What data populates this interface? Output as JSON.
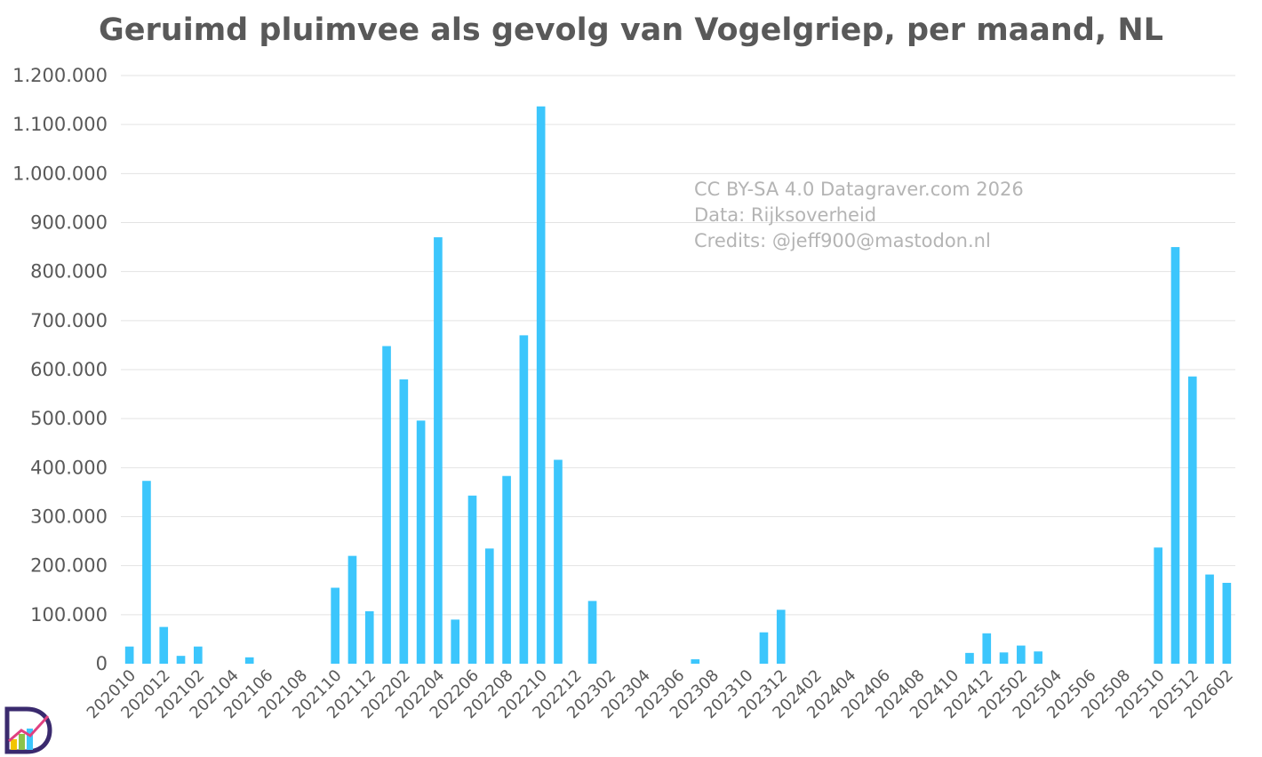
{
  "chart_data": {
    "type": "bar",
    "title": "Geruimd pluimvee als gevolg van Vogelgriep, per maand, NL",
    "xlabel": "",
    "ylabel": "",
    "ylim": [
      0,
      1200000
    ],
    "yticks": [
      "0",
      "100.000",
      "200.000",
      "300.000",
      "400.000",
      "500.000",
      "600.000",
      "700.000",
      "800.000",
      "900.000",
      "1.000.000",
      "1.100.000",
      "1.200.000"
    ],
    "grid": true,
    "categories": [
      "202010",
      "202011",
      "202012",
      "202101",
      "202102",
      "202103",
      "202104",
      "202105",
      "202106",
      "202107",
      "202108",
      "202109",
      "202110",
      "202111",
      "202112",
      "202201",
      "202202",
      "202203",
      "202204",
      "202205",
      "202206",
      "202207",
      "202208",
      "202209",
      "202210",
      "202211",
      "202212",
      "202301",
      "202302",
      "202303",
      "202304",
      "202305",
      "202306",
      "202307",
      "202308",
      "202309",
      "202310",
      "202311",
      "202312",
      "202401",
      "202402",
      "202403",
      "202404",
      "202405",
      "202406",
      "202407",
      "202408",
      "202409",
      "202410",
      "202411",
      "202412",
      "202501",
      "202502",
      "202503",
      "202504",
      "202505",
      "202506",
      "202507",
      "202508",
      "202509",
      "202510",
      "202511",
      "202512",
      "202601",
      "202602"
    ],
    "values": [
      35000,
      373000,
      75000,
      16000,
      35000,
      0,
      0,
      13000,
      0,
      0,
      0,
      0,
      155000,
      220000,
      107000,
      648000,
      580000,
      496000,
      870000,
      90000,
      343000,
      235000,
      383000,
      670000,
      1137000,
      416000,
      0,
      128000,
      0,
      0,
      0,
      0,
      0,
      9000,
      0,
      0,
      0,
      64000,
      110000,
      0,
      0,
      0,
      0,
      0,
      0,
      0,
      0,
      0,
      0,
      22000,
      62000,
      23000,
      37000,
      25000,
      0,
      0,
      0,
      0,
      0,
      0,
      237000,
      850000,
      586000,
      182000,
      165000
    ],
    "xtick_labels": [
      "202010",
      "202012",
      "202102",
      "202104",
      "202106",
      "202108",
      "202110",
      "202112",
      "202202",
      "202204",
      "202206",
      "202208",
      "202210",
      "202212",
      "202302",
      "202304",
      "202306",
      "202308",
      "202310",
      "202312",
      "202402",
      "202404",
      "202406",
      "202408",
      "202410",
      "202412",
      "202502",
      "202504",
      "202506",
      "202508",
      "202510",
      "202512",
      "202602"
    ],
    "color": "#3cc6fc"
  },
  "credits": {
    "line1": "CC BY-SA 4.0 Datagraver.com 2026",
    "line2": "Data: Rijksoverheid",
    "line3": "Credits: @jeff900@mastodon.nl"
  },
  "logo": {
    "icon": "datagraver-logo-icon"
  }
}
